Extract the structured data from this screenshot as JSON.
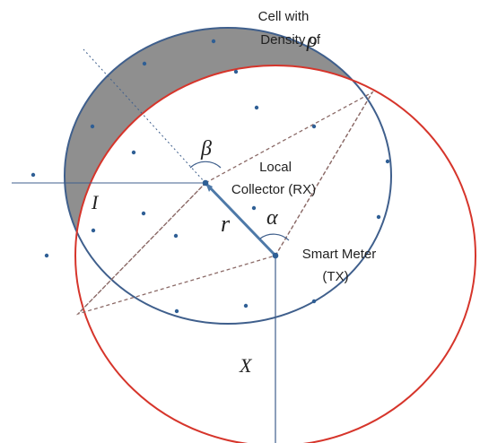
{
  "cell_label": {
    "line1": "Cell with",
    "line2_prefix": "Density of",
    "density_symbol": "ρ"
  },
  "receiver_label": {
    "line1": "Local",
    "line2": "Collector (RX)"
  },
  "transmitter_label": {
    "line1": "Smart Meter",
    "line2": "(TX)"
  },
  "symbols": {
    "interference_region": "I",
    "distance_x": "X",
    "radius_r": "r",
    "angle_alpha": "α",
    "angle_beta": "β"
  },
  "colors": {
    "cell_boundary": "#3f5f8c",
    "transmitter_circle": "#d6352b",
    "shaded_region": "#8f8f8f",
    "node_dots": "#2f5f95",
    "construction_lines": "#8b6a67",
    "radius_line": "#4e79a8"
  }
}
